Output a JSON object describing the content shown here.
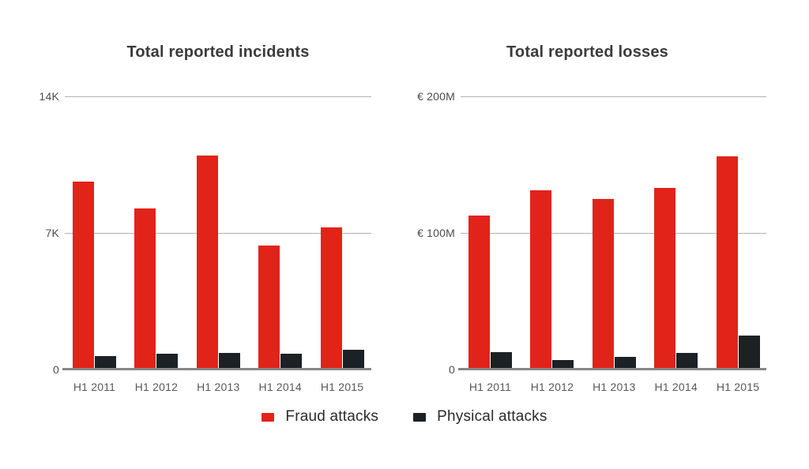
{
  "colors": {
    "fraud": "#e2231a",
    "physical": "#1c2126",
    "grid": "#b3b3b3",
    "axis": "#84878a",
    "title": "#3b3b3b"
  },
  "legend": {
    "items": [
      {
        "label": "Fraud attacks",
        "color_key": "fraud"
      },
      {
        "label": "Physical attacks",
        "color_key": "physical"
      }
    ],
    "position": "bottom-center-shared"
  },
  "chart_data": [
    {
      "type": "bar",
      "title": "Total reported incidents",
      "categories": [
        "H1 2011",
        "H1 2012",
        "H1 2013",
        "H1 2014",
        "H1 2015"
      ],
      "series": [
        {
          "name": "Fraud attacks",
          "color_key": "fraud",
          "values": [
            9650,
            8250,
            10950,
            6350,
            7300
          ]
        },
        {
          "name": "Physical attacks",
          "color_key": "physical",
          "values": [
            700,
            800,
            850,
            820,
            1000
          ]
        }
      ],
      "xlabel": "",
      "ylabel": "",
      "ylim": [
        0,
        14000
      ],
      "yticks": [
        {
          "value": 14000,
          "label": "14K"
        },
        {
          "value": 7000,
          "label": "7K"
        },
        {
          "value": 0,
          "label": "0"
        }
      ],
      "grid": true
    },
    {
      "type": "bar",
      "title": "Total reported losses",
      "categories": [
        "H1 2011",
        "H1 2012",
        "H1 2013",
        "H1 2014",
        "H1 2015"
      ],
      "unit": "EUR millions",
      "series": [
        {
          "name": "Fraud attacks",
          "color_key": "fraud",
          "values": [
            113,
            131,
            125,
            133,
            156
          ]
        },
        {
          "name": "Physical attacks",
          "color_key": "physical",
          "values": [
            13,
            7,
            9,
            12,
            25
          ]
        }
      ],
      "xlabel": "",
      "ylabel": "",
      "ylim": [
        0,
        200
      ],
      "yticks": [
        {
          "value": 200,
          "label": "€ 200M"
        },
        {
          "value": 100,
          "label": "€ 100M"
        },
        {
          "value": 0,
          "label": "0"
        }
      ],
      "grid": true
    }
  ]
}
